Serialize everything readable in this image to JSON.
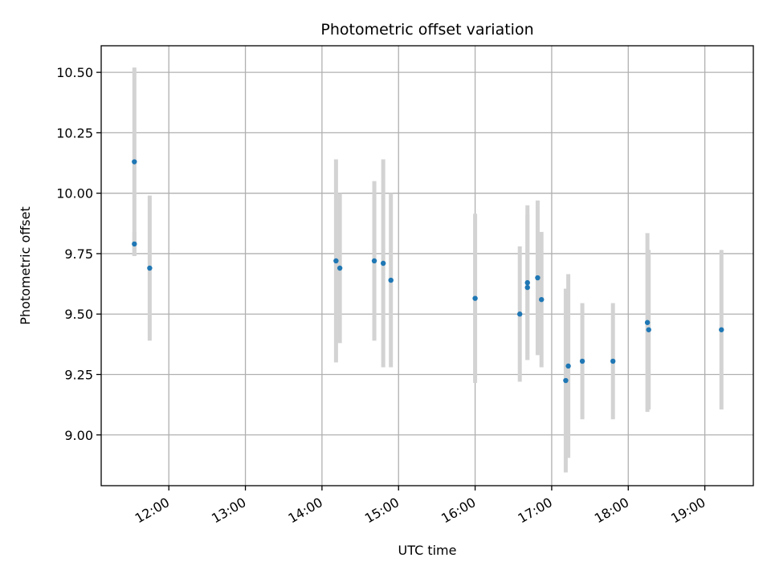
{
  "chart_data": {
    "type": "scatter",
    "title": "Photometric offset variation",
    "xlabel": "UTC time",
    "ylabel": "Photometric offset",
    "x_ticks": [
      "12:00",
      "13:00",
      "14:00",
      "15:00",
      "16:00",
      "17:00",
      "18:00",
      "19:00"
    ],
    "y_ticks": [
      "9.00",
      "9.25",
      "9.50",
      "9.75",
      "10.00",
      "10.25",
      "10.50"
    ],
    "xlim": [
      "11:07",
      "19:38"
    ],
    "ylim": [
      8.79,
      10.61
    ],
    "grid": true,
    "colors": {
      "point": "#1f77b4",
      "errorbar": "#d3d3d3",
      "grid": "#b0b0b0"
    },
    "series": [
      {
        "points": [
          {
            "x": "11:33",
            "y": 10.13,
            "yerr": 0.39
          },
          {
            "x": "11:33",
            "y": 9.79,
            "yerr": 0.05
          },
          {
            "x": "11:45",
            "y": 9.69,
            "yerr": 0.3
          },
          {
            "x": "14:11",
            "y": 9.72,
            "yerr": 0.42
          },
          {
            "x": "14:14",
            "y": 9.69,
            "yerr": 0.31
          },
          {
            "x": "14:41",
            "y": 9.72,
            "yerr": 0.33
          },
          {
            "x": "14:48",
            "y": 9.71,
            "yerr": 0.43
          },
          {
            "x": "14:54",
            "y": 9.64,
            "yerr": 0.36
          },
          {
            "x": "16:00",
            "y": 9.565,
            "yerr": 0.35
          },
          {
            "x": "16:35",
            "y": 9.5,
            "yerr": 0.28
          },
          {
            "x": "16:41",
            "y": 9.61,
            "yerr": 0.3
          },
          {
            "x": "16:41",
            "y": 9.63,
            "yerr": 0.32
          },
          {
            "x": "16:49",
            "y": 9.65,
            "yerr": 0.32
          },
          {
            "x": "16:52",
            "y": 9.56,
            "yerr": 0.28
          },
          {
            "x": "17:11",
            "y": 9.225,
            "yerr": 0.38
          },
          {
            "x": "17:13",
            "y": 9.285,
            "yerr": 0.38
          },
          {
            "x": "17:24",
            "y": 9.305,
            "yerr": 0.24
          },
          {
            "x": "17:48",
            "y": 9.305,
            "yerr": 0.24
          },
          {
            "x": "18:15",
            "y": 9.465,
            "yerr": 0.37
          },
          {
            "x": "18:16",
            "y": 9.435,
            "yerr": 0.33
          },
          {
            "x": "19:13",
            "y": 9.435,
            "yerr": 0.33
          }
        ]
      }
    ]
  }
}
